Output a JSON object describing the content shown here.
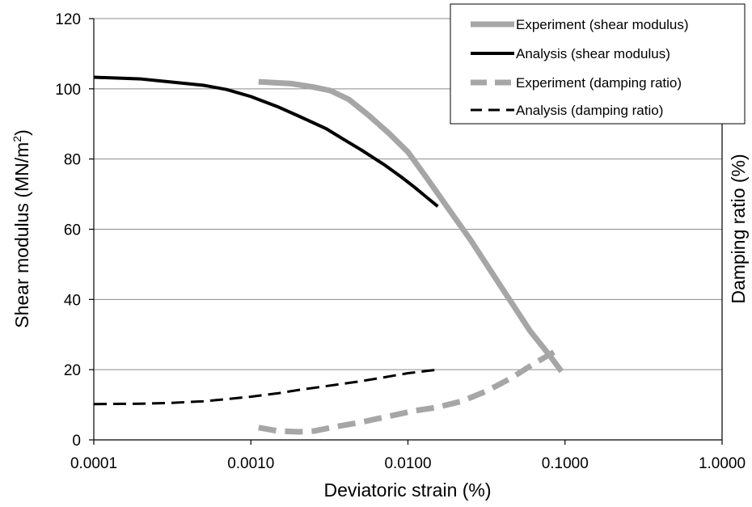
{
  "chart_data": {
    "type": "line",
    "title": "",
    "xlabel": "Deviatoric strain (%)",
    "ylabel_left": "Shear modulus  (MN/m",
    "ylabel_left_sup": "2",
    "ylabel_left_end": ")",
    "ylabel_right": "Damping ratio (%)",
    "xscale": "log",
    "xlim": [
      0.0001,
      1.0
    ],
    "ylim": [
      0,
      120
    ],
    "x_ticks": [
      0.0001,
      0.001,
      0.01,
      0.1,
      1.0
    ],
    "x_tick_labels": [
      "0.0001",
      "0.0010",
      "0.0100",
      "0.1000",
      "1.0000"
    ],
    "y_ticks": [
      0,
      20,
      40,
      60,
      80,
      100,
      120
    ],
    "y_tick_labels": [
      "0",
      "20",
      "40",
      "60",
      "80",
      "100",
      "120"
    ],
    "grid": "horizontal",
    "legend_position": "top-right",
    "series": [
      {
        "name": "Experiment (shear modulus)",
        "color": "#a6a6a6",
        "dash": "solid",
        "width": 7,
        "x": [
          0.00112,
          0.0018,
          0.0025,
          0.0032,
          0.0042,
          0.0056,
          0.0075,
          0.01,
          0.013,
          0.018,
          0.025,
          0.04,
          0.06,
          0.08,
          0.095
        ],
        "y": [
          102,
          101.5,
          100.5,
          99.5,
          97,
          92.5,
          87.5,
          82,
          75,
          66,
          57,
          43,
          31,
          24,
          19.5
        ]
      },
      {
        "name": "Analysis (shear modulus)",
        "color": "#000000",
        "dash": "solid",
        "width": 4,
        "x": [
          0.0001,
          0.0002,
          0.0003,
          0.0005,
          0.0007,
          0.001,
          0.0015,
          0.002,
          0.003,
          0.004,
          0.005,
          0.007,
          0.009,
          0.011,
          0.013,
          0.0155
        ],
        "y": [
          103.3,
          102.8,
          102,
          101,
          99.8,
          97.8,
          94.8,
          92.3,
          88.7,
          85.3,
          82.7,
          78.5,
          75,
          72,
          69.3,
          66.5
        ]
      },
      {
        "name": "Experiment (damping ratio)",
        "color": "#a6a6a6",
        "dash": "dashed",
        "width": 7,
        "x": [
          0.00112,
          0.0015,
          0.002,
          0.0025,
          0.0035,
          0.005,
          0.0075,
          0.011,
          0.015,
          0.022,
          0.032,
          0.045,
          0.065,
          0.085
        ],
        "y": [
          3.5,
          2.5,
          2.3,
          2.5,
          3.8,
          5.0,
          6.7,
          8.3,
          9.2,
          11.0,
          14.0,
          17.5,
          22.0,
          25.0
        ]
      },
      {
        "name": "Analysis (damping ratio)",
        "color": "#000000",
        "dash": "dashed",
        "width": 3,
        "x": [
          0.0001,
          0.0002,
          0.0003,
          0.0005,
          0.0007,
          0.001,
          0.0015,
          0.002,
          0.003,
          0.005,
          0.007,
          0.01,
          0.0155
        ],
        "y": [
          10.2,
          10.3,
          10.5,
          11.0,
          11.6,
          12.3,
          13.3,
          14.2,
          15.3,
          16.7,
          17.8,
          19.0,
          20.0
        ]
      }
    ]
  }
}
